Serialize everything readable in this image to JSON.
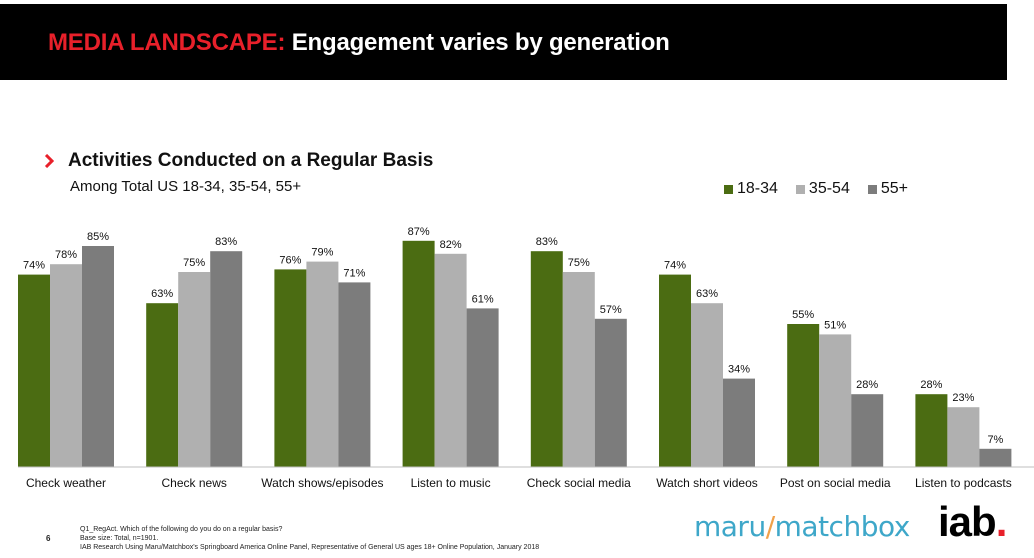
{
  "header": {
    "title_accent": "MEDIA LANDSCAPE:",
    "title_rest": "Engagement varies by generation"
  },
  "chart_data": {
    "type": "bar",
    "title": "Activities Conducted on a Regular Basis",
    "subtitle": "Among Total US 18-34, 35-54, 55+",
    "categories": [
      "Check weather",
      "Check news",
      "Watch shows/episodes",
      "Listen to music",
      "Check social media",
      "Watch short videos",
      "Post on social media",
      "Listen to podcasts"
    ],
    "series": [
      {
        "name": "18-34",
        "color": "#4b6c12",
        "values": [
          74,
          63,
          76,
          87,
          83,
          74,
          55,
          28
        ]
      },
      {
        "name": "35-54",
        "color": "#b0b0b0",
        "values": [
          78,
          75,
          79,
          82,
          75,
          63,
          51,
          23
        ]
      },
      {
        "name": "55+",
        "color": "#7c7c7c",
        "values": [
          85,
          83,
          71,
          61,
          57,
          34,
          28,
          7
        ]
      }
    ],
    "value_suffix": "%",
    "ylim": [
      0,
      100
    ],
    "legend_position": "top-right",
    "grid": false
  },
  "footer": {
    "page_number": "6",
    "footnotes": [
      "Q1_RegAct. Which of the following do you do on a regular basis?",
      "Base size: Total, n=1901.",
      "IAB Research Using Maru/Matchbox's Springboard America Online Panel, Representative of General US ages 18+ Online Population, January 2018"
    ]
  },
  "logos": {
    "maru_left": "maru",
    "maru_slash": "/",
    "maru_right": "matchbox",
    "iab_text": "iab",
    "iab_dot": "."
  },
  "colors": {
    "header_bg": "#000000",
    "accent_red": "#e8202a",
    "maru_blue": "#3ea7c9"
  }
}
